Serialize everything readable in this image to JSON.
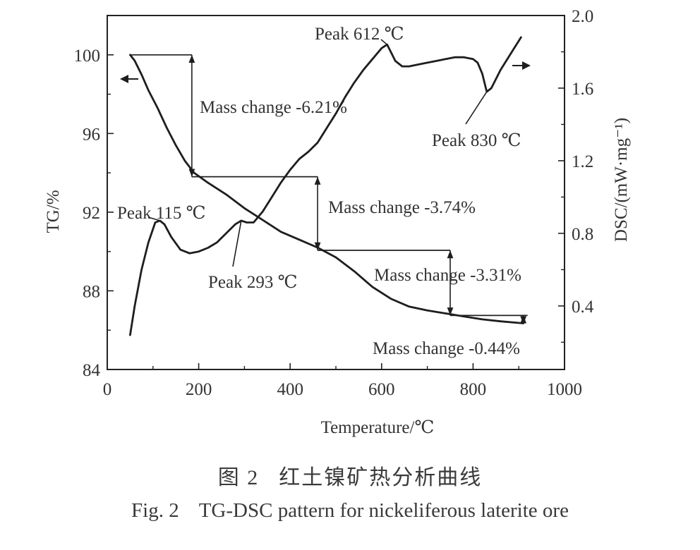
{
  "chart_data": {
    "type": "line",
    "xlabel": "Temperature/℃",
    "ylabel_left": "TG/%",
    "ylabel_right": "DSC/(mW·mg⁻¹)",
    "xlim": [
      0,
      1000
    ],
    "ylim_left": [
      84,
      102
    ],
    "ylim_right": [
      0.05,
      2.0
    ],
    "x_ticks": [
      0,
      200,
      400,
      600,
      800,
      1000
    ],
    "x_tick_labels": [
      "0",
      "200",
      "400",
      "600",
      "800",
      "1000"
    ],
    "y_left_ticks": [
      84,
      88,
      92,
      96,
      100
    ],
    "y_left_tick_labels": [
      "84",
      "88",
      "92",
      "96",
      "100"
    ],
    "y_right_ticks": [
      0.4,
      0.8,
      1.2,
      1.6,
      2.0
    ],
    "y_right_tick_labels": [
      "0.4",
      "0.8",
      "1.2",
      "1.6",
      "2.0"
    ],
    "grid": false,
    "series": [
      {
        "axis": "left",
        "x": [
          50,
          60,
          75,
          90,
          110,
          130,
          150,
          170,
          190,
          220,
          260,
          300,
          340,
          380,
          420,
          460,
          500,
          540,
          580,
          620,
          660,
          700,
          740,
          780,
          820,
          860,
          910
        ],
        "y": [
          100,
          99.7,
          99.0,
          98.2,
          97.3,
          96.3,
          95.4,
          94.6,
          94.0,
          93.5,
          92.9,
          92.2,
          91.6,
          91.0,
          90.6,
          90.2,
          89.7,
          89.0,
          88.2,
          87.6,
          87.2,
          87.0,
          86.85,
          86.7,
          86.55,
          86.45,
          86.35
        ]
      },
      {
        "axis": "right",
        "x": [
          50,
          60,
          75,
          90,
          105,
          115,
          125,
          140,
          160,
          180,
          200,
          220,
          240,
          260,
          280,
          293,
          305,
          320,
          340,
          360,
          380,
          400,
          420,
          440,
          460,
          480,
          500,
          520,
          540,
          560,
          580,
          600,
          612,
          620,
          630,
          645,
          660,
          680,
          700,
          720,
          740,
          760,
          780,
          800,
          810,
          820,
          830,
          840,
          850,
          860,
          875,
          890,
          905
        ],
        "y": [
          0.24,
          0.4,
          0.6,
          0.75,
          0.86,
          0.87,
          0.85,
          0.78,
          0.71,
          0.69,
          0.7,
          0.72,
          0.75,
          0.8,
          0.85,
          0.87,
          0.86,
          0.86,
          0.92,
          1.0,
          1.08,
          1.15,
          1.21,
          1.25,
          1.3,
          1.38,
          1.46,
          1.55,
          1.63,
          1.7,
          1.76,
          1.82,
          1.84,
          1.8,
          1.75,
          1.72,
          1.72,
          1.73,
          1.74,
          1.75,
          1.76,
          1.77,
          1.77,
          1.76,
          1.74,
          1.68,
          1.58,
          1.6,
          1.65,
          1.7,
          1.76,
          1.82,
          1.88
        ]
      }
    ],
    "annotations": [
      {
        "text": "Peak 612 ℃",
        "label_x": 530,
        "label_y": 2.0,
        "point_x": 612,
        "point_y": 1.84
      },
      {
        "text": "Peak 830 ℃",
        "label_x": 720,
        "label_y": 1.49,
        "point_x": 830,
        "point_y": 1.58
      },
      {
        "text": "Peak 115 ℃",
        "label_x": 130,
        "label_y": 0.98,
        "point_x": 115,
        "point_y": 0.87
      },
      {
        "text": "Peak 293 ℃",
        "label_x": 345,
        "label_y": 0.57,
        "point_x": 293,
        "point_y": 0.87
      }
    ],
    "mass_changes": [
      {
        "text": "Mass change -6.21%",
        "tg_from": 100,
        "tg_to": 93.8,
        "x_from": 50,
        "x_to": 190,
        "bracket_x": 185
      },
      {
        "text": "Mass change -3.74%",
        "tg_from": 93.8,
        "tg_to": 90.06,
        "x_from": 190,
        "x_to": 460,
        "bracket_x": 460
      },
      {
        "text": "Mass change -3.31%",
        "tg_from": 90.06,
        "tg_to": 86.75,
        "x_from": 460,
        "x_to": 750,
        "bracket_x": 750
      },
      {
        "text": "Mass change -0.44%",
        "tg_from": 86.75,
        "tg_to": 86.31,
        "x_from": 750,
        "x_to": 910,
        "bracket_x": 910
      }
    ]
  },
  "caption": {
    "cn_label": "图 2",
    "cn_text": "红土镍矿热分析曲线",
    "en_label": "Fig. 2",
    "en_text": "TG-DSC pattern for nickeliferous laterite ore"
  }
}
